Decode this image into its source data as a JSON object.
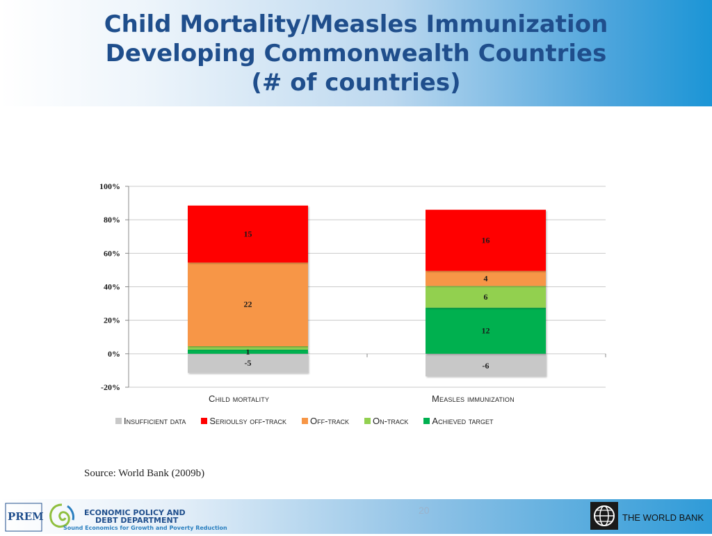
{
  "header": {
    "title_lines": [
      "Child Mortality/Measles Immunization",
      "Developing Commonwealth Countries",
      "(# of countries)"
    ]
  },
  "chart_data": {
    "type": "bar",
    "stacked": true,
    "categories": [
      "Child mortality",
      "Measles immunization"
    ],
    "ylim": [
      -20,
      100
    ],
    "yticks": [
      "100%",
      "80%",
      "60%",
      "40%",
      "20%",
      "0%",
      "-20%"
    ],
    "ytick_values": [
      100,
      80,
      60,
      40,
      20,
      0,
      -20
    ],
    "legend_position": "bottom",
    "series": [
      {
        "name": "Insufficient data",
        "color": "#c8c8c8",
        "labels": [
          "-5",
          "-6"
        ],
        "values_pct": [
          -11.5,
          -13.5
        ],
        "label_color": "#1a1a1a"
      },
      {
        "name": "Achieved target",
        "color": "#00b050",
        "labels": [
          "1",
          "12"
        ],
        "values_pct": [
          2.5,
          27.5
        ],
        "label_color": "#1a1a1a"
      },
      {
        "name": "On-track",
        "color": "#92d050",
        "labels": [
          "1",
          "6"
        ],
        "values_pct": [
          2.0,
          13.0
        ],
        "label_color": "#1a1a1a"
      },
      {
        "name": "Off-track",
        "color": "#f79646",
        "labels": [
          "22",
          "4"
        ],
        "values_pct": [
          50.0,
          9.0
        ],
        "label_color": "#1a1a1a"
      },
      {
        "name": "Seriouly off-track",
        "display_name": "Serioulsy off-track",
        "color": "#ff0000",
        "labels": [
          "15",
          "16"
        ],
        "values_pct": [
          34.0,
          36.5
        ],
        "label_color": "#1a1a1a"
      }
    ],
    "legend_order": [
      "Insufficient data",
      "Serioulsy off-track",
      "Off-track",
      "On-track",
      "Achieved target"
    ],
    "legend_colors": [
      "#c8c8c8",
      "#ff0000",
      "#f79646",
      "#92d050",
      "#00b050"
    ]
  },
  "xaxis": {
    "cat1": "Child mortality",
    "cat2": "Measles immunization"
  },
  "legend": {
    "item1": "Insufficient data",
    "item2": "Serioulsy off-track",
    "item3": "Off-track",
    "item4": "On-track",
    "item5": "Achieved target"
  },
  "source": "Source: World Bank (2009b)",
  "footer": {
    "page_number": "20",
    "dept_line1": "ECONOMIC POLICY AND",
    "dept_line2": "DEBT DEPARTMENT",
    "dept_tagline": "Sound Economics for Growth and Poverty Reduction",
    "prem_logo": "PREM",
    "world_bank": "THE WORLD BANK"
  }
}
